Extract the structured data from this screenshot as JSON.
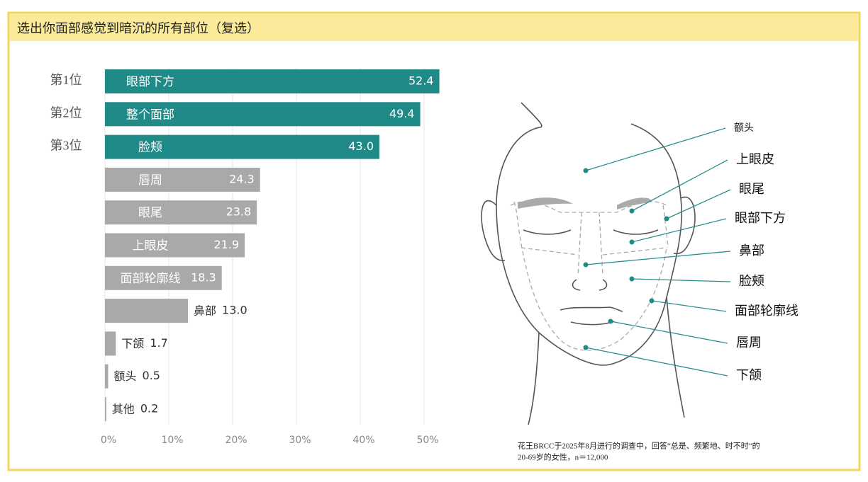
{
  "chart_data": {
    "type": "bar",
    "orientation": "horizontal",
    "title": "选出你面部感觉到暗沉的所有部位（复选）",
    "categories": [
      "眼部下方",
      "整个面部",
      "脸颊",
      "唇周",
      "眼尾",
      "上眼皮",
      "面部轮廓线",
      "鼻部",
      "下颌",
      "额头",
      "其他"
    ],
    "values": [
      52.4,
      49.4,
      43.0,
      24.3,
      23.8,
      21.9,
      18.3,
      13.0,
      1.7,
      0.5,
      0.2
    ],
    "value_labels": [
      "52.4",
      "49.4",
      "43.0",
      "24.3",
      "23.8",
      "21.9",
      "18.3",
      "13.0",
      "1.7",
      "0.5",
      "0.2"
    ],
    "colors": [
      "#1f8a87",
      "#1f8a87",
      "#1f8a87",
      "#a9a9a9",
      "#a9a9a9",
      "#a9a9a9",
      "#a9a9a9",
      "#a9a9a9",
      "#a9a9a9",
      "#a9a9a9",
      "#a9a9a9"
    ],
    "rank_labels": [
      "第1位",
      "第2位",
      "第3位"
    ],
    "xlim": [
      0,
      52
    ],
    "xticks": [
      {
        "value": 0,
        "label": "0%"
      },
      {
        "value": 10,
        "label": "10%"
      },
      {
        "value": 20,
        "label": "20%"
      },
      {
        "value": 30,
        "label": "30%"
      },
      {
        "value": 40,
        "label": "40%"
      },
      {
        "value": 50,
        "label": "50%"
      }
    ],
    "diagram_labels": [
      "额头",
      "上眼皮",
      "眼尾",
      "眼部下方",
      "鼻部",
      "脸颊",
      "面部轮廓线",
      "唇周",
      "下颌"
    ],
    "notes": [
      "花王BRCC于2025年8月进行的调查中，回答“总是、频繁地、时不时”的",
      "20-69岁的女性，n＝12,000"
    ]
  }
}
